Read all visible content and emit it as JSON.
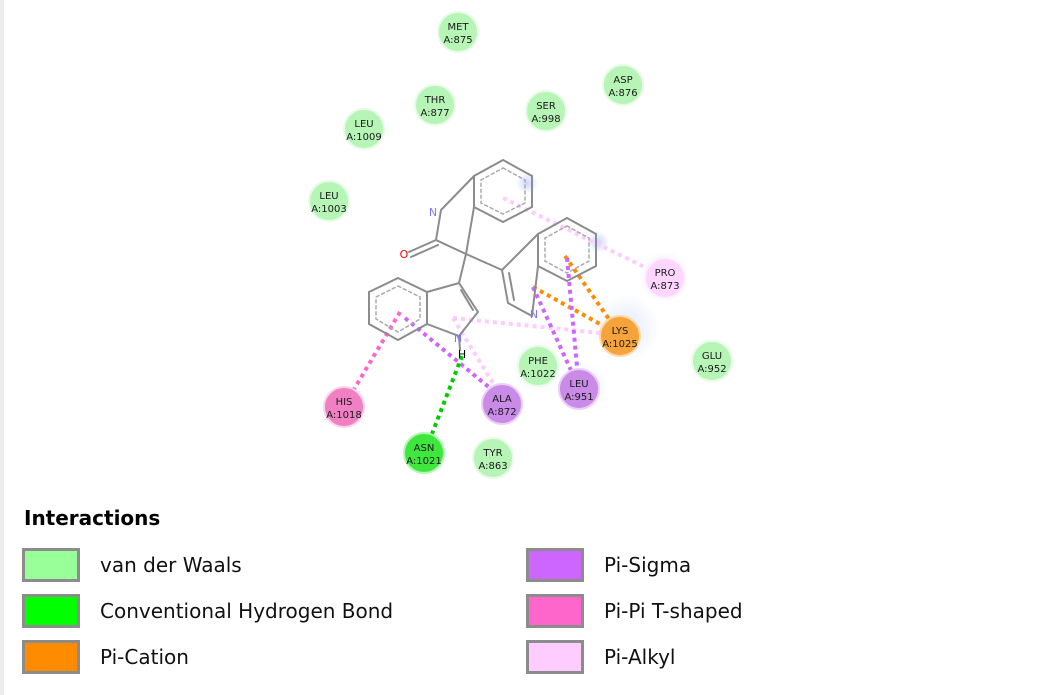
{
  "diagram": {
    "residues": {
      "met875": {
        "name": "MET",
        "id": "A:875"
      },
      "asp876": {
        "name": "ASP",
        "id": "A:876"
      },
      "thr877": {
        "name": "THR",
        "id": "A:877"
      },
      "ser998": {
        "name": "SER",
        "id": "A:998"
      },
      "leu1009": {
        "name": "LEU",
        "id": "A:1009"
      },
      "leu1003": {
        "name": "LEU",
        "id": "A:1003"
      },
      "pro873": {
        "name": "PRO",
        "id": "A:873"
      },
      "lys1025": {
        "name": "LYS",
        "id": "A:1025"
      },
      "glu952": {
        "name": "GLU",
        "id": "A:952"
      },
      "phe1022": {
        "name": "PHE",
        "id": "A:1022"
      },
      "leu951": {
        "name": "LEU",
        "id": "A:951"
      },
      "ala872": {
        "name": "ALA",
        "id": "A:872"
      },
      "his1018": {
        "name": "HIS",
        "id": "A:1018"
      },
      "asn1021": {
        "name": "ASN",
        "id": "A:1021"
      },
      "tyr863": {
        "name": "TYR",
        "id": "A:863"
      }
    },
    "atoms": {
      "n_lactam": "N",
      "o_carbonyl": "O",
      "n_indole_left": "N",
      "h_indole_left": "H",
      "n_indole_right": "N"
    }
  },
  "legend": {
    "title": "Interactions",
    "items": [
      {
        "label": "van der Waals",
        "color": "#99ff99"
      },
      {
        "label": "Conventional Hydrogen Bond",
        "color": "#00ff00"
      },
      {
        "label": "Pi-Cation",
        "color": "#ff8c00"
      },
      {
        "label": "Pi-Sigma",
        "color": "#cc66ff"
      },
      {
        "label": "Pi-Pi T-shaped",
        "color": "#ff66cc"
      },
      {
        "label": "Pi-Alkyl",
        "color": "#ffccff"
      }
    ]
  },
  "colors": {
    "van_der_waals": "#99ff99",
    "hydrogen_bond": "#00ff00",
    "pi_cation": "#ff8c00",
    "pi_sigma": "#cc66ff",
    "pi_pi_t_shaped": "#ff66cc",
    "pi_alkyl": "#ffccff",
    "bond": "#888888"
  }
}
